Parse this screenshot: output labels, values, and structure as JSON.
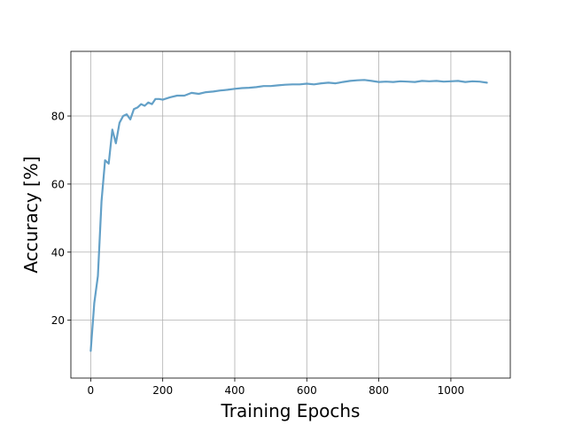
{
  "chart_data": {
    "type": "line",
    "title": "",
    "xlabel": "Training Epochs",
    "ylabel": "Accuracy [%]",
    "xlim": [
      -55,
      1165
    ],
    "ylim": [
      3,
      99
    ],
    "xticks": [
      0,
      200,
      400,
      600,
      800,
      1000
    ],
    "yticks": [
      20,
      40,
      60,
      80
    ],
    "grid": true,
    "legend": "none",
    "series": [
      {
        "color": "#5b9bc4",
        "x": [
          0,
          10,
          20,
          30,
          40,
          50,
          60,
          70,
          80,
          90,
          100,
          110,
          120,
          130,
          140,
          150,
          160,
          170,
          180,
          190,
          200,
          220,
          240,
          260,
          280,
          300,
          320,
          340,
          360,
          380,
          400,
          420,
          440,
          460,
          480,
          500,
          520,
          540,
          560,
          580,
          600,
          620,
          640,
          660,
          680,
          700,
          720,
          740,
          760,
          780,
          800,
          820,
          840,
          860,
          880,
          900,
          920,
          940,
          960,
          980,
          1000,
          1020,
          1040,
          1060,
          1080,
          1100
        ],
        "y": [
          11,
          25,
          33,
          55,
          67,
          66,
          76,
          72,
          78,
          80,
          80.5,
          79,
          82,
          82.5,
          83.5,
          83,
          84,
          83.5,
          85,
          85,
          84.8,
          85.5,
          86,
          86,
          86.8,
          86.5,
          87,
          87.2,
          87.5,
          87.7,
          88,
          88.2,
          88.3,
          88.5,
          88.8,
          88.8,
          89,
          89.2,
          89.3,
          89.3,
          89.5,
          89.3,
          89.6,
          89.8,
          89.6,
          90,
          90.3,
          90.5,
          90.6,
          90.3,
          90,
          90.1,
          90,
          90.2,
          90.1,
          90,
          90.3,
          90.2,
          90.3,
          90.1,
          90.2,
          90.3,
          90,
          90.2,
          90.1,
          89.8
        ]
      }
    ]
  }
}
